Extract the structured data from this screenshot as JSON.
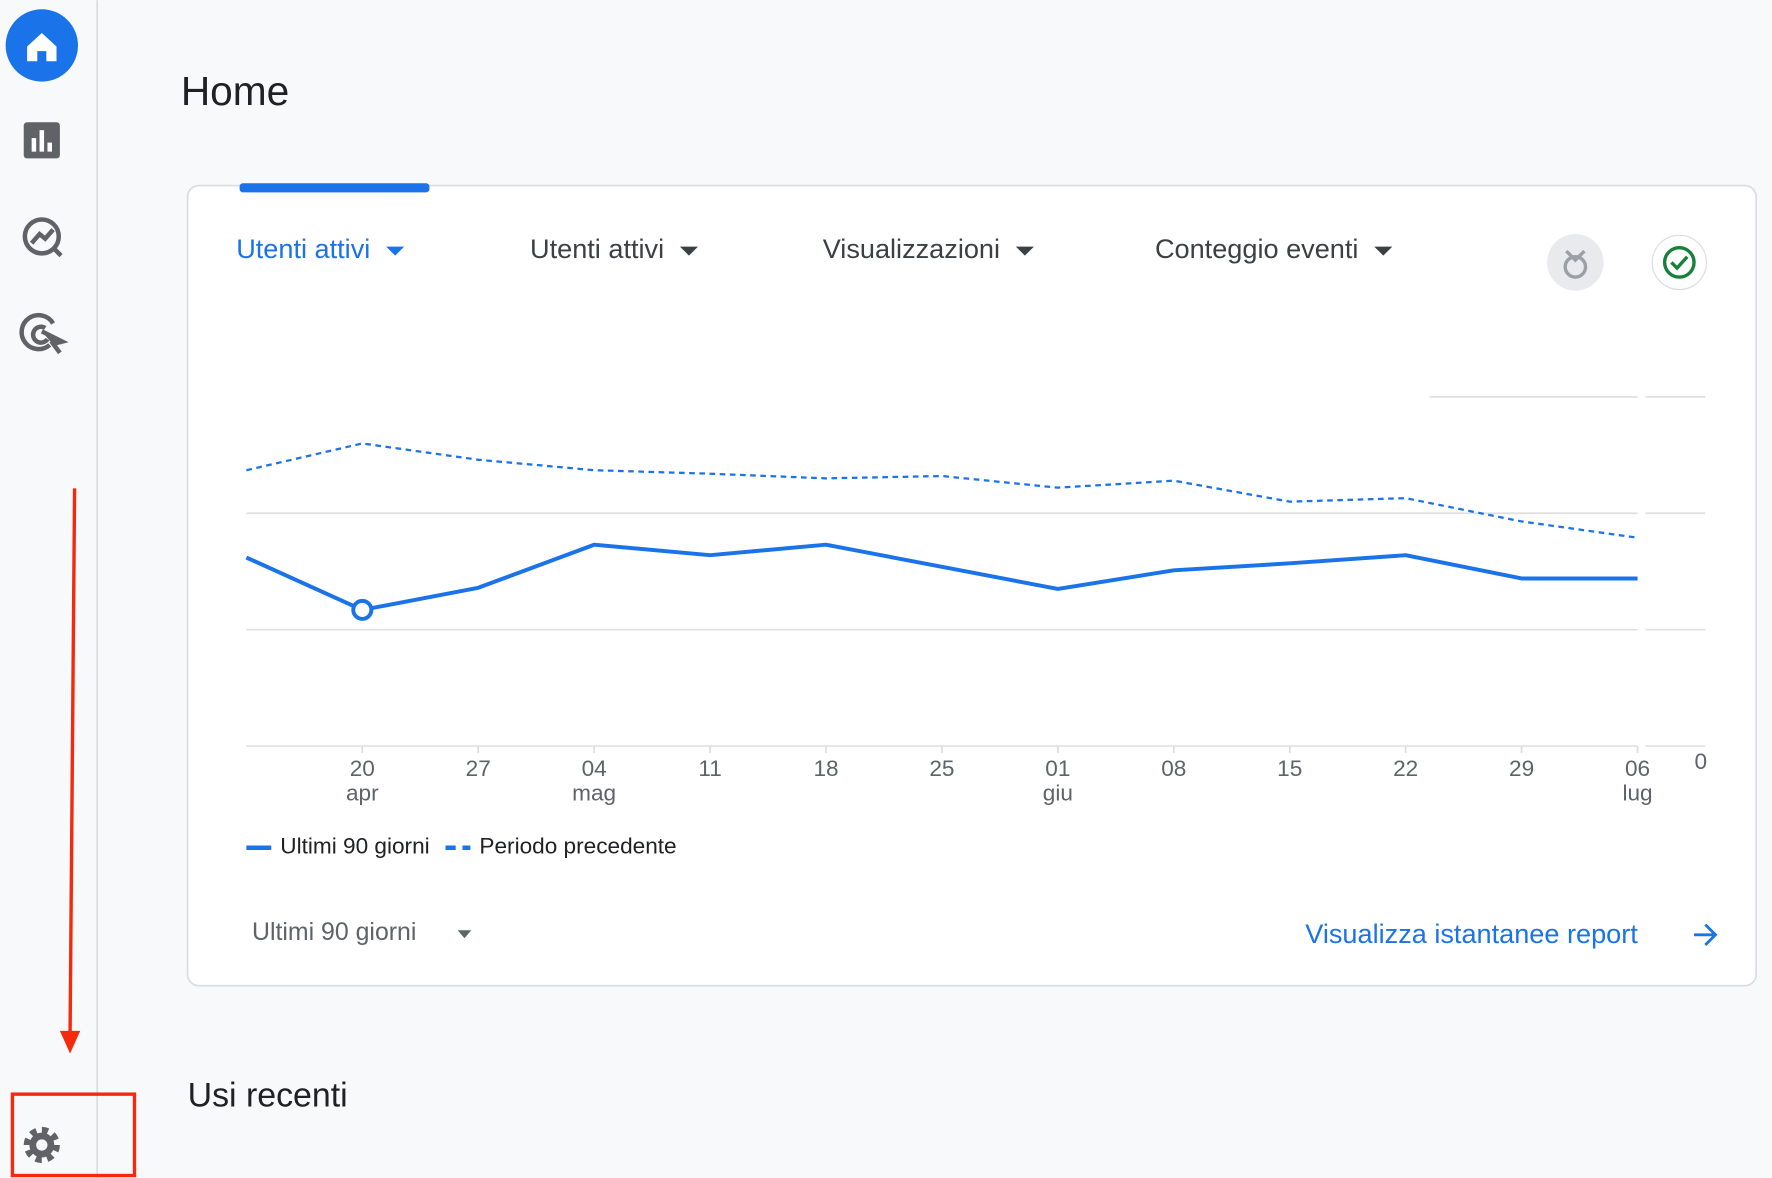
{
  "header": {
    "title": "Home"
  },
  "card": {
    "tabs": [
      "Utenti attivi",
      "Utenti attivi",
      "Visualizzazioni",
      "Conteggio eventi"
    ],
    "chart_data": {
      "type": "line",
      "categories": [
        null,
        "20 apr",
        "27",
        "04 mag",
        "11",
        "18",
        "25",
        "01 giu",
        "08",
        "15",
        "22",
        "29",
        "06 lug"
      ],
      "series": [
        {
          "name": "Ultimi 90 giorni",
          "color": "#1a73e8",
          "dash": false,
          "values": [
            1.62,
            1.17,
            1.36,
            1.73,
            1.64,
            1.73,
            1.54,
            1.35,
            1.51,
            1.57,
            1.64,
            1.44,
            1.44
          ]
        },
        {
          "name": "Periodo precedente",
          "color": "#1a73e8",
          "dash": true,
          "values": [
            2.37,
            2.6,
            2.46,
            2.37,
            2.34,
            2.3,
            2.32,
            2.22,
            2.28,
            2.1,
            2.13,
            1.93,
            1.79
          ]
        }
      ],
      "highlight": 1,
      "ylim": [
        0,
        3
      ],
      "yticks": [
        0,
        {
          "value": 1,
          "label": null
        },
        {
          "value": 2,
          "label": null
        },
        {
          "value": 3,
          "label": null
        }
      ],
      "grid": true
    },
    "date_range": "Ultimi 90 giorni",
    "link": "Visualizza istantanee report"
  },
  "section": {
    "title": "Usi recenti"
  }
}
